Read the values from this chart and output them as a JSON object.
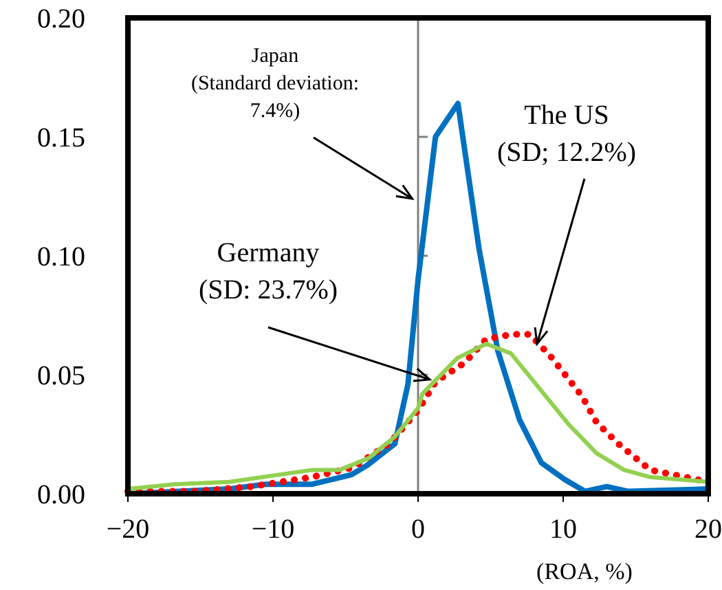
{
  "chart_data": {
    "type": "line",
    "xlabel": "(ROA, %)",
    "xlim": [
      -20,
      20
    ],
    "xticks": [
      -20,
      -10,
      0,
      10,
      20
    ],
    "ylim": [
      0,
      0.2
    ],
    "yticks": [
      {
        "value": 0,
        "label": "0.00"
      },
      {
        "value": 0.05,
        "label": "0.05"
      },
      {
        "value": 0.1,
        "label": "0.10"
      },
      {
        "value": 0.15,
        "label": "0.15"
      },
      {
        "value": 0.2,
        "label": "0.20"
      }
    ],
    "grid": false,
    "marker": "none",
    "ref_lines": [
      {
        "axis": "x",
        "value": 0,
        "label": null,
        "color": "#808080"
      }
    ],
    "series": [
      {
        "color": "#0070c0",
        "line_style": "solid",
        "x": [
          -20,
          -13,
          -10.5,
          -7.3,
          -4.6,
          -3.5,
          -1.6,
          -0.7,
          0,
          1.2,
          2.75,
          4.2,
          5.5,
          7,
          8.5,
          10.1,
          11.5,
          13,
          14.5,
          20
        ],
        "values": [
          0,
          0.002,
          0.004,
          0.004,
          0.008,
          0.012,
          0.021,
          0.046,
          0.09,
          0.15,
          0.164,
          0.103,
          0.06,
          0.031,
          0.013,
          0.006,
          0.001,
          0.003,
          0.001,
          0.002
        ]
      },
      {
        "color": "#ff0000",
        "line_style": "dotted",
        "x": [
          -20,
          -15.3,
          -11.5,
          -7.3,
          -4.5,
          -2,
          0,
          1.2,
          3.2,
          4.7,
          6.5,
          7.7,
          9.1,
          11.3,
          12.3,
          13.8,
          16,
          20
        ],
        "values": [
          0.001,
          0.001,
          0.003,
          0.007,
          0.011,
          0.021,
          0.035,
          0.047,
          0.055,
          0.065,
          0.067,
          0.067,
          0.058,
          0.041,
          0.03,
          0.021,
          0.01,
          0.005
        ]
      },
      {
        "color": "#92d050",
        "line_style": "solid",
        "x": [
          -20,
          -16.8,
          -13,
          -7.3,
          -5.4,
          -3.4,
          -1.6,
          0,
          0.3,
          2.7,
          4.7,
          6.4,
          10.4,
          12.3,
          14.2,
          16,
          20
        ],
        "values": [
          0.002,
          0.004,
          0.005,
          0.01,
          0.01,
          0.015,
          0.024,
          0.036,
          0.042,
          0.057,
          0.063,
          0.059,
          0.029,
          0.017,
          0.01,
          0.007,
          0.005
        ]
      }
    ],
    "annotations": [
      {
        "text": "Japan\n(Standard deviation:\n7.4%)",
        "x": -0.4,
        "y": 0.124
      },
      {
        "text": "The US\n(SD; 12.2%)",
        "x": 8.2,
        "y": 0.063
      },
      {
        "text": "Germany\n(SD: 23.7%)",
        "x": 0.8,
        "y": 0.048
      }
    ]
  }
}
